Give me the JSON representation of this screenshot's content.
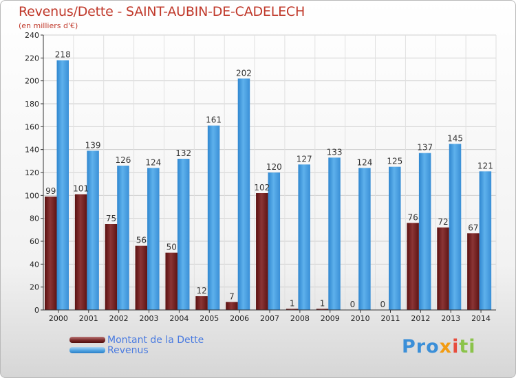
{
  "header": {
    "title": "Revenus/Dette - SAINT-AUBIN-DE-CADELECH",
    "subtitle": "(en milliers d'€)"
  },
  "chart_data": {
    "type": "bar",
    "title": "Revenus/Dette - SAINT-AUBIN-DE-CADELECH",
    "subtitle": "(en milliers d'€)",
    "categories": [
      "2000",
      "2001",
      "2002",
      "2003",
      "2004",
      "2005",
      "2006",
      "2007",
      "2008",
      "2009",
      "2010",
      "2011",
      "2012",
      "2013",
      "2014"
    ],
    "series": [
      {
        "name": "Montant de la Dette",
        "color": "#7a2a2a",
        "values": [
          99,
          101,
          75,
          56,
          50,
          12,
          7,
          102,
          1,
          1,
          0,
          0,
          76,
          72,
          67
        ]
      },
      {
        "name": "Revenus",
        "color": "#4fa3e2",
        "values": [
          218,
          139,
          126,
          124,
          132,
          161,
          202,
          120,
          127,
          133,
          124,
          125,
          137,
          145,
          121
        ]
      }
    ],
    "ylim": [
      0,
      240
    ],
    "yticks": [
      0,
      20,
      40,
      60,
      80,
      100,
      120,
      140,
      160,
      180,
      200,
      220,
      240
    ],
    "grid": true,
    "legend_position": "bottom-left"
  },
  "legend": {
    "items": [
      {
        "label": "Montant de la Dette"
      },
      {
        "label": "Revenus"
      }
    ]
  },
  "logo": {
    "part1": "Pro",
    "part2": "x",
    "part3": "i",
    "part4": "ti"
  }
}
